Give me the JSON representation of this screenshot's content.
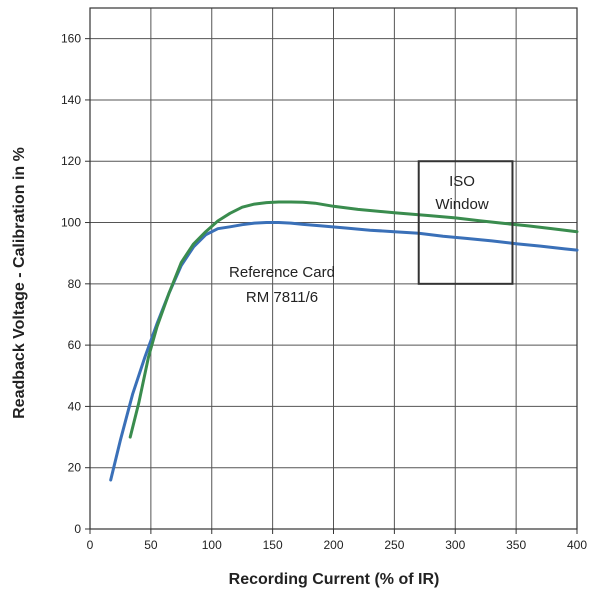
{
  "chart_data": {
    "type": "line",
    "xlabel": "Recording Current (% of IR)",
    "ylabel": "Readback Voltage - Calibration in %",
    "xlim": [
      0,
      400
    ],
    "ylim": [
      0,
      170
    ],
    "x_ticks": [
      0,
      50,
      100,
      150,
      200,
      250,
      300,
      350,
      400
    ],
    "y_ticks": [
      0,
      20,
      40,
      60,
      80,
      100,
      120,
      140,
      160
    ],
    "grid": true,
    "series": [
      {
        "color": "#3a70b8",
        "points": [
          [
            17,
            16
          ],
          [
            25,
            29
          ],
          [
            35,
            44
          ],
          [
            45,
            56
          ],
          [
            55,
            67
          ],
          [
            65,
            77
          ],
          [
            75,
            86
          ],
          [
            85,
            92
          ],
          [
            95,
            96
          ],
          [
            105,
            98
          ],
          [
            115,
            98.6
          ],
          [
            125,
            99.3
          ],
          [
            135,
            99.8
          ],
          [
            145,
            100
          ],
          [
            155,
            100
          ],
          [
            165,
            99.8
          ],
          [
            175,
            99.4
          ],
          [
            190,
            98.9
          ],
          [
            210,
            98.2
          ],
          [
            230,
            97.5
          ],
          [
            250,
            97
          ],
          [
            270,
            96.5
          ],
          [
            290,
            95.5
          ],
          [
            310,
            94.8
          ],
          [
            330,
            94
          ],
          [
            350,
            93.1
          ],
          [
            370,
            92.3
          ],
          [
            390,
            91.4
          ],
          [
            400,
            91
          ]
        ]
      },
      {
        "color": "#3a8c4e",
        "points": [
          [
            33,
            30
          ],
          [
            40,
            41
          ],
          [
            48,
            56
          ],
          [
            55,
            66
          ],
          [
            65,
            77
          ],
          [
            75,
            87
          ],
          [
            85,
            93
          ],
          [
            95,
            97
          ],
          [
            105,
            100.5
          ],
          [
            115,
            103
          ],
          [
            125,
            105
          ],
          [
            135,
            106
          ],
          [
            145,
            106.5
          ],
          [
            155,
            106.7
          ],
          [
            165,
            106.7
          ],
          [
            175,
            106.6
          ],
          [
            185,
            106.3
          ],
          [
            200,
            105.3
          ],
          [
            220,
            104.3
          ],
          [
            250,
            103.2
          ],
          [
            280,
            102.2
          ],
          [
            300,
            101.5
          ],
          [
            320,
            100.6
          ],
          [
            340,
            99.7
          ],
          [
            360,
            98.9
          ],
          [
            380,
            98
          ],
          [
            400,
            97
          ]
        ]
      }
    ],
    "annotations": {
      "curve_label_line1": "Reference Card",
      "curve_label_line2": "RM 7811/6",
      "box_label_line1": "ISO",
      "box_label_line2": "Window"
    },
    "iso_window": {
      "x": [
        270,
        347
      ],
      "y": [
        80,
        120
      ]
    }
  }
}
